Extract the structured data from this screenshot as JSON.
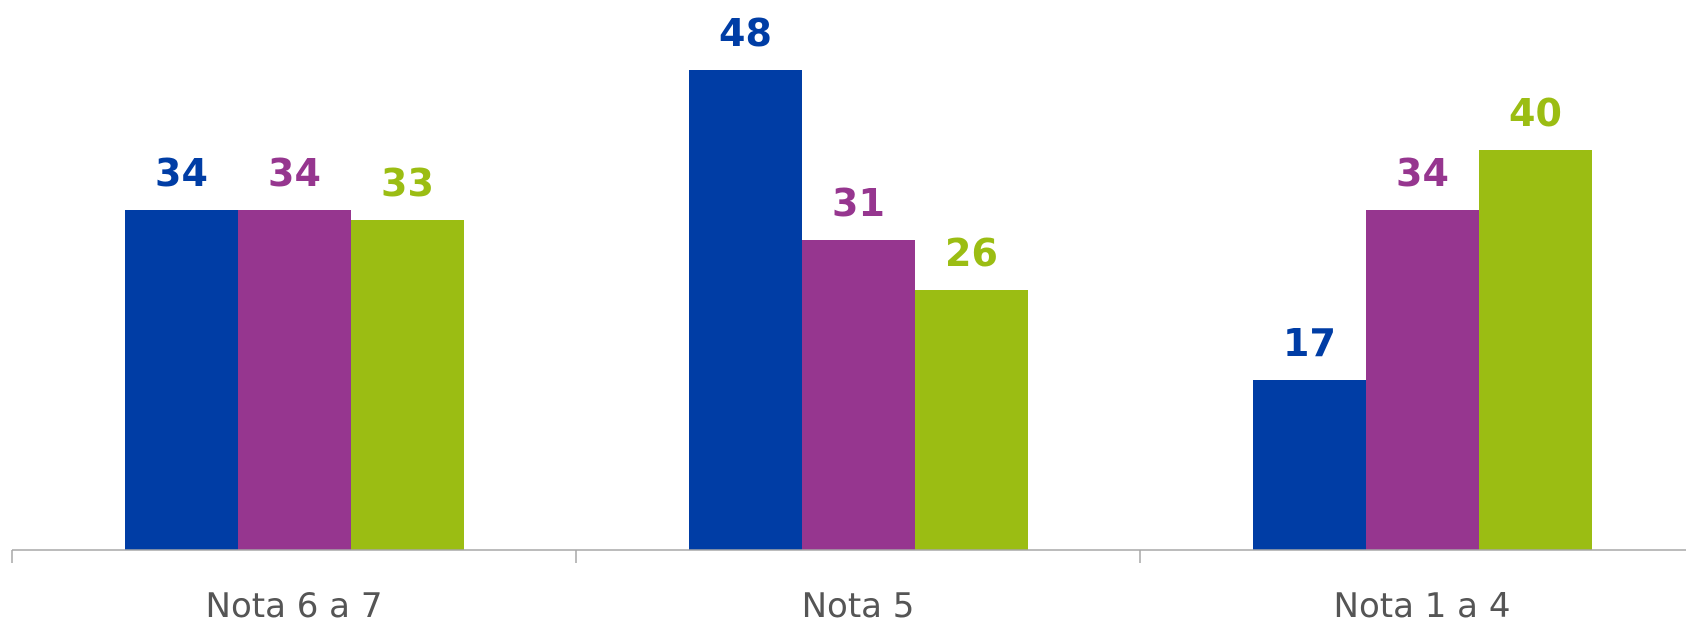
{
  "chart_data": {
    "type": "bar",
    "categories": [
      "Nota 6 a 7",
      "Nota 5",
      "Nota 1 a 4"
    ],
    "series": [
      {
        "values": [
          34,
          48,
          17
        ],
        "color": "#003da5"
      },
      {
        "values": [
          34,
          31,
          34
        ],
        "color": "#96368f"
      },
      {
        "values": [
          33,
          26,
          40
        ],
        "color": "#9bbd13"
      }
    ],
    "ylim": [
      0,
      50
    ],
    "grid": false,
    "legend": "none",
    "data_labels": true
  }
}
